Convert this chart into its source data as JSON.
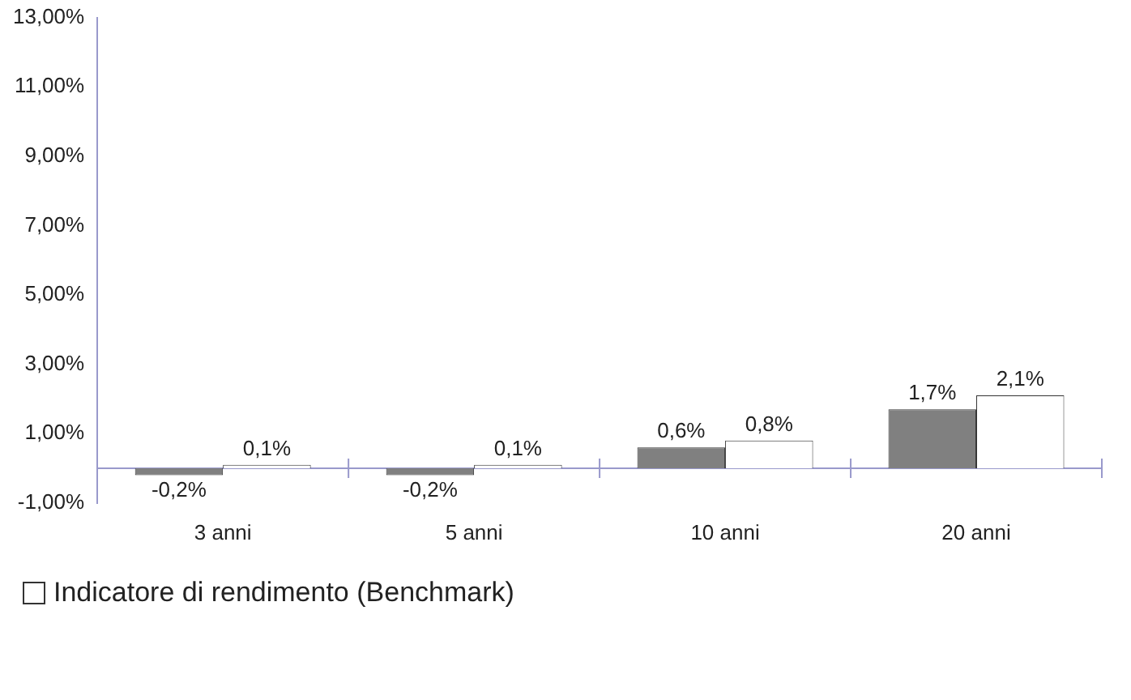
{
  "chart_data": {
    "type": "bar",
    "categories": [
      "3 anni",
      "5 anni",
      "10 anni",
      "20 anni"
    ],
    "series": [
      {
        "color": "#808080",
        "values": [
          -0.2,
          -0.2,
          0.6,
          1.7
        ],
        "value_labels": [
          "-0,2%",
          "-0,2%",
          "0,6%",
          "1,7%"
        ]
      },
      {
        "name": "Indicatore di rendimento (Benchmark)",
        "color": "#ffffff",
        "values": [
          0.1,
          0.1,
          0.8,
          2.1
        ],
        "value_labels": [
          "0,1%",
          "0,1%",
          "0,8%",
          "2,1%"
        ]
      }
    ],
    "ylim": [
      -1,
      13
    ],
    "yticks": [
      {
        "value": -1,
        "label": "-1,00%"
      },
      {
        "value": 1,
        "label": "1,00%"
      },
      {
        "value": 3,
        "label": "3,00%"
      },
      {
        "value": 5,
        "label": "5,00%"
      },
      {
        "value": 7,
        "label": "7,00%"
      },
      {
        "value": 9,
        "label": "9,00%"
      },
      {
        "value": 11,
        "label": "11,00%"
      },
      {
        "value": 13,
        "label": "13,00%"
      }
    ],
    "grid": false,
    "legend": "bottom left"
  }
}
